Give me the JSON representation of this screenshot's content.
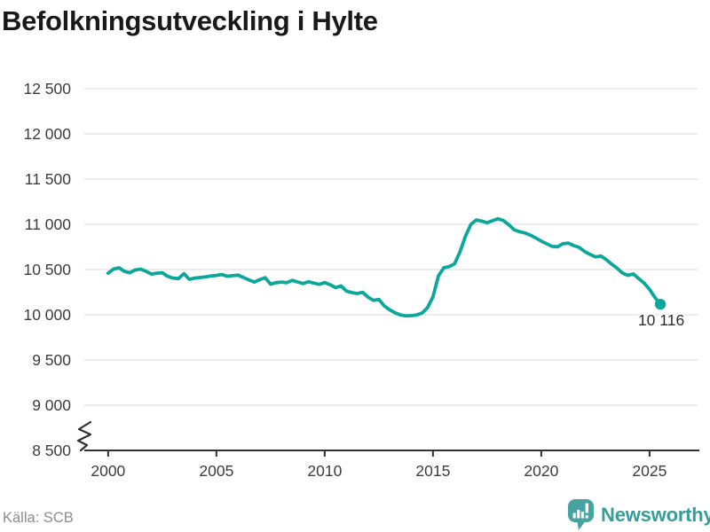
{
  "title": "Befolkningsutveckling i Hylte",
  "source": "Källa: SCB",
  "logo": {
    "wordmark": "Newsworthy",
    "icon": "newsworthy-speech-bubble-barchart-icon"
  },
  "colors": {
    "line": "#0BA79A",
    "end_dot": "#0BA79A",
    "logo_icon": "#47A3A0",
    "logo_wordmark": "#379D99",
    "title": "#191919",
    "axis": "#303030",
    "tick_label": "#3C3C3C",
    "grid": "#E2E2E2",
    "source": "#8D8D8D",
    "end_label": "#2E2E2E",
    "background": "#FFFFFF"
  },
  "chart_data": {
    "type": "line",
    "title": "Befolkningsutveckling i Hylte",
    "xlabel": "",
    "ylabel": "",
    "grid": "horizontal",
    "legend": "none",
    "axis_break_y": true,
    "xlim": [
      1998.9,
      2027.3
    ],
    "ylim": [
      8500,
      12500
    ],
    "x_tick_years": [
      2000,
      2005,
      2010,
      2015,
      2020,
      2025
    ],
    "x_tick_labels": [
      "2000",
      "2005",
      "2010",
      "2015",
      "2020",
      "2025"
    ],
    "y_ticks": [
      8500,
      9000,
      9500,
      10000,
      10500,
      11000,
      11500,
      12000,
      12500
    ],
    "y_tick_labels": [
      "8 500",
      "9 000",
      "9 500",
      "10 000",
      "10 500",
      "11 000",
      "11 500",
      "12 000",
      "12 500"
    ],
    "series": [
      {
        "color": "#0BA79A",
        "x_start": 2000.0,
        "x_step": 0.25,
        "end_value": 10116,
        "end_label": "10 116",
        "values": [
          10460,
          10505,
          10520,
          10480,
          10465,
          10495,
          10505,
          10480,
          10450,
          10460,
          10465,
          10425,
          10405,
          10400,
          10455,
          10392,
          10405,
          10412,
          10420,
          10428,
          10435,
          10445,
          10425,
          10432,
          10438,
          10412,
          10385,
          10362,
          10388,
          10410,
          10338,
          10355,
          10362,
          10355,
          10380,
          10362,
          10345,
          10366,
          10350,
          10336,
          10356,
          10332,
          10300,
          10320,
          10262,
          10245,
          10235,
          10248,
          10195,
          10160,
          10170,
          10098,
          10055,
          10022,
          9998,
          9988,
          9990,
          9998,
          10020,
          10080,
          10200,
          10430,
          10520,
          10532,
          10565,
          10700,
          10870,
          11000,
          11048,
          11035,
          11018,
          11040,
          11062,
          11042,
          10995,
          10940,
          10918,
          10905,
          10880,
          10848,
          10815,
          10785,
          10756,
          10752,
          10785,
          10792,
          10765,
          10745,
          10700,
          10668,
          10640,
          10650,
          10610,
          10560,
          10515,
          10462,
          10435,
          10452,
          10400,
          10350,
          10280,
          10190,
          10116
        ]
      }
    ]
  }
}
